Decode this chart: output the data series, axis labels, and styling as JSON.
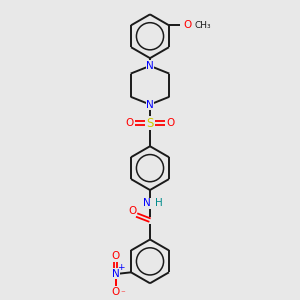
{
  "bg_color": "#e8e8e8",
  "bond_color": "#1a1a1a",
  "N_color": "#0000ff",
  "O_color": "#ff0000",
  "S_color": "#cccc00",
  "H_color": "#008b8b",
  "figsize": [
    3.0,
    3.0
  ],
  "dpi": 100,
  "xlim": [
    -3.5,
    3.5
  ],
  "ylim": [
    -5.5,
    5.5
  ]
}
